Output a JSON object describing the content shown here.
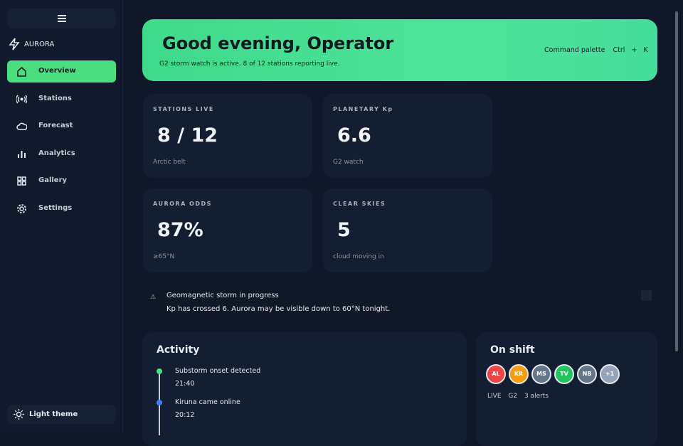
{
  "sidebar": {
    "brand": "AURORA",
    "nav": [
      "Overview",
      "Stations",
      "Forecast",
      "Analytics",
      "Gallery",
      "Settings"
    ],
    "theme_toggle": "Light theme"
  },
  "header": {
    "title": "Good evening, Operator",
    "subtitle": "G2 storm watch is active. 8 of 12 stations reporting live.",
    "shortcut": {
      "label": "Command palette",
      "keys": [
        "Ctrl",
        "+",
        "K"
      ]
    }
  },
  "stats": [
    {
      "label": "STATIONS LIVE",
      "value": "8 / 12",
      "note": "Arctic belt"
    },
    {
      "label": "PLANETARY Kp",
      "value": "6.6",
      "note": "G2 watch"
    },
    {
      "label": "AURORA ODDS",
      "value": "87%",
      "note": "≥65°N"
    },
    {
      "label": "CLEAR SKIES",
      "value": "5",
      "note": "cloud moving in"
    }
  ],
  "alert": {
    "title": "Geomagnetic storm in progress",
    "message": "Kp has crossed 6. Aurora may be visible down to 60°N tonight."
  },
  "activity": {
    "title": "Activity",
    "items": [
      {
        "text": "Substorm onset detected",
        "time": "21:40"
      },
      {
        "text": "Kiruna came online",
        "time": "20:12"
      }
    ]
  },
  "on_shift": {
    "title": "On shift",
    "avatars": [
      "AL",
      "KR",
      "MS",
      "TV",
      "NB",
      "+1"
    ],
    "status": [
      "LIVE",
      "G2",
      "3 alerts"
    ]
  }
}
